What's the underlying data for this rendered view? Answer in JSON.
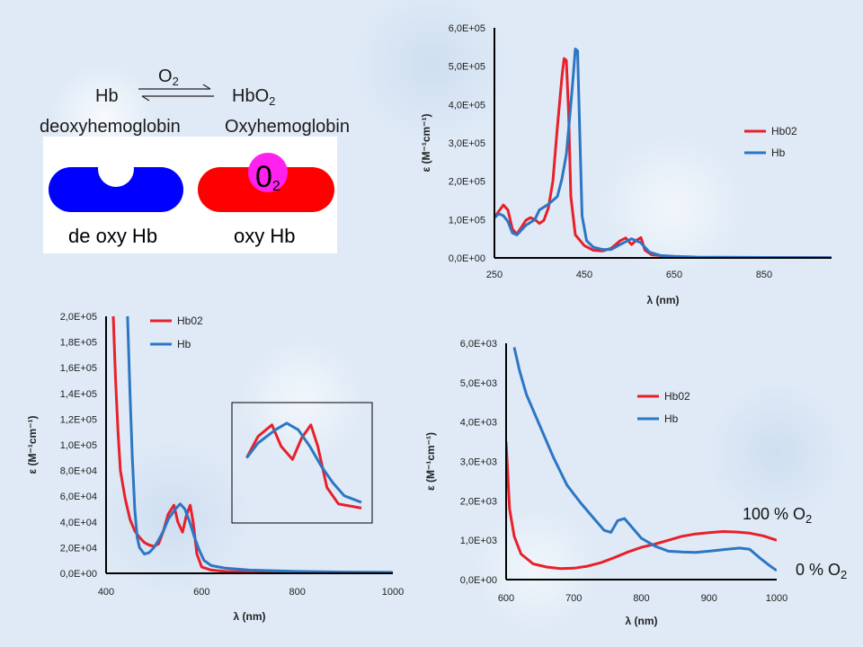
{
  "reaction": {
    "o2_label": "O",
    "o2_sub": "2",
    "reactant": "Hb",
    "product": "HbO",
    "product_sub": "2",
    "reactant_name": "deoxyhemoglobin",
    "product_name": "Oxyhemoglobin"
  },
  "illustration": {
    "deoxy_label": "de oxy Hb",
    "oxy_label": "oxy Hb",
    "o2_glyph": "0",
    "o2_glyph_sub": "2",
    "deoxy_color": "#0000ff",
    "oxy_color": "#ff0000",
    "o2_color": "#ff22ee"
  },
  "annotations": {
    "full_oxy": "100 % O",
    "full_oxy_sub": "2",
    "zero_oxy": "0 % O",
    "zero_oxy_sub": "2"
  },
  "colors": {
    "hbo2": "#e8202a",
    "hb": "#2c76c4",
    "axis": "#000000"
  },
  "chart_data": [
    {
      "type": "line",
      "title": "",
      "xlabel": "λ (nm)",
      "ylabel": "ε (M⁻¹cm⁻¹)",
      "xlim": [
        250,
        1000
      ],
      "ylim": [
        0,
        600000
      ],
      "xticks": [
        250,
        450,
        650,
        850
      ],
      "xtick_labels": [
        "250",
        "450",
        "650",
        "850"
      ],
      "yticks": [
        0,
        100000,
        200000,
        300000,
        400000,
        500000,
        600000
      ],
      "ytick_labels": [
        "0,0E+00",
        "1,0E+05",
        "2,0E+05",
        "3,0E+05",
        "4,0E+05",
        "5,0E+05",
        "6,0E+05"
      ],
      "legend_position": "right",
      "series": [
        {
          "name": "Hb02",
          "color": "#e8202a",
          "points": [
            [
              250,
              105000
            ],
            [
              260,
              122000
            ],
            [
              270,
              138000
            ],
            [
              280,
              125000
            ],
            [
              290,
              75000
            ],
            [
              300,
              62000
            ],
            [
              310,
              80000
            ],
            [
              320,
              98000
            ],
            [
              330,
              105000
            ],
            [
              340,
              100000
            ],
            [
              350,
              90000
            ],
            [
              360,
              98000
            ],
            [
              370,
              130000
            ],
            [
              380,
              200000
            ],
            [
              390,
              340000
            ],
            [
              400,
              470000
            ],
            [
              405,
              520000
            ],
            [
              410,
              515000
            ],
            [
              415,
              380000
            ],
            [
              420,
              160000
            ],
            [
              430,
              60000
            ],
            [
              450,
              32000
            ],
            [
              470,
              20000
            ],
            [
              490,
              18000
            ],
            [
              510,
              25000
            ],
            [
              530,
              45000
            ],
            [
              542,
              52000
            ],
            [
              555,
              35000
            ],
            [
              565,
              45000
            ],
            [
              576,
              53000
            ],
            [
              585,
              20000
            ],
            [
              600,
              8000
            ],
            [
              650,
              3000
            ],
            [
              700,
              1500
            ],
            [
              800,
              1200
            ],
            [
              900,
              1000
            ],
            [
              1000,
              800
            ]
          ]
        },
        {
          "name": "Hb",
          "color": "#2c76c4",
          "points": [
            [
              250,
              105000
            ],
            [
              260,
              115000
            ],
            [
              270,
              110000
            ],
            [
              280,
              95000
            ],
            [
              290,
              65000
            ],
            [
              300,
              60000
            ],
            [
              320,
              85000
            ],
            [
              340,
              100000
            ],
            [
              350,
              125000
            ],
            [
              370,
              140000
            ],
            [
              390,
              160000
            ],
            [
              400,
              205000
            ],
            [
              410,
              270000
            ],
            [
              420,
              400000
            ],
            [
              425,
              470000
            ],
            [
              430,
              545000
            ],
            [
              435,
              540000
            ],
            [
              440,
              320000
            ],
            [
              445,
              110000
            ],
            [
              455,
              45000
            ],
            [
              470,
              28000
            ],
            [
              490,
              22000
            ],
            [
              510,
              22000
            ],
            [
              530,
              35000
            ],
            [
              555,
              50000
            ],
            [
              575,
              40000
            ],
            [
              595,
              15000
            ],
            [
              620,
              6000
            ],
            [
              650,
              4000
            ],
            [
              700,
              2000
            ],
            [
              800,
              1500
            ],
            [
              900,
              1000
            ],
            [
              1000,
              800
            ]
          ]
        }
      ]
    },
    {
      "type": "line",
      "title": "",
      "xlabel": "λ (nm)",
      "ylabel": "ε (M⁻¹cm⁻¹)",
      "xlim": [
        400,
        1000
      ],
      "ylim": [
        0,
        200000
      ],
      "xticks": [
        400,
        600,
        800,
        1000
      ],
      "xtick_labels": [
        "400",
        "600",
        "800",
        "1000"
      ],
      "yticks": [
        0,
        20000,
        40000,
        60000,
        80000,
        100000,
        120000,
        140000,
        160000,
        180000,
        200000
      ],
      "ytick_labels": [
        "0,0E+00",
        "2,0E+04",
        "4,0E+04",
        "6,0E+04",
        "8,0E+04",
        "1,0E+05",
        "1,2E+05",
        "1,4E+05",
        "1,6E+05",
        "1,8E+05",
        "2,0E+05"
      ],
      "legend_position": "top-left",
      "inset": "zoomed view of the 500–600 nm Q bands",
      "series": [
        {
          "name": "Hb02",
          "color": "#e8202a",
          "points": [
            [
              415,
              200000
            ],
            [
              420,
              150000
            ],
            [
              425,
              110000
            ],
            [
              430,
              80000
            ],
            [
              440,
              58000
            ],
            [
              450,
              42000
            ],
            [
              460,
              33000
            ],
            [
              470,
              28000
            ],
            [
              480,
              24000
            ],
            [
              490,
              22000
            ],
            [
              500,
              21000
            ],
            [
              510,
              23000
            ],
            [
              520,
              33000
            ],
            [
              530,
              46000
            ],
            [
              542,
              53000
            ],
            [
              550,
              40000
            ],
            [
              560,
              32000
            ],
            [
              568,
              45000
            ],
            [
              576,
              53000
            ],
            [
              582,
              40000
            ],
            [
              590,
              15000
            ],
            [
              600,
              5000
            ],
            [
              620,
              2500
            ],
            [
              650,
              1500
            ],
            [
              700,
              1000
            ],
            [
              800,
              800
            ],
            [
              900,
              700
            ],
            [
              1000,
              600
            ]
          ]
        },
        {
          "name": "Hb",
          "color": "#2c76c4",
          "points": [
            [
              445,
              200000
            ],
            [
              450,
              140000
            ],
            [
              455,
              90000
            ],
            [
              460,
              50000
            ],
            [
              465,
              28000
            ],
            [
              470,
              20000
            ],
            [
              480,
              15000
            ],
            [
              490,
              16000
            ],
            [
              500,
              20000
            ],
            [
              510,
              26000
            ],
            [
              520,
              33000
            ],
            [
              530,
              42000
            ],
            [
              545,
              50000
            ],
            [
              555,
              54000
            ],
            [
              565,
              50000
            ],
            [
              575,
              40000
            ],
            [
              585,
              28000
            ],
            [
              595,
              18000
            ],
            [
              605,
              10000
            ],
            [
              620,
              6000
            ],
            [
              650,
              4000
            ],
            [
              700,
              2500
            ],
            [
              800,
              1500
            ],
            [
              900,
              1000
            ],
            [
              1000,
              800
            ]
          ]
        }
      ]
    },
    {
      "type": "line",
      "title": "",
      "xlabel": "λ (nm)",
      "ylabel": "ε (M⁻¹cm⁻¹)",
      "xlim": [
        600,
        1000
      ],
      "ylim": [
        0,
        6000
      ],
      "xticks": [
        600,
        700,
        800,
        900,
        1000
      ],
      "xtick_labels": [
        "600",
        "700",
        "800",
        "900",
        "1000"
      ],
      "yticks": [
        0,
        1000,
        2000,
        3000,
        4000,
        5000,
        6000
      ],
      "ytick_labels": [
        "0,0E+00",
        "1,0E+03",
        "2,0E+03",
        "3,0E+03",
        "4,0E+03",
        "5,0E+03",
        "6,0E+03"
      ],
      "legend_position": "top-center",
      "series": [
        {
          "name": "Hb02",
          "color": "#e8202a",
          "points": [
            [
              600,
              3500
            ],
            [
              605,
              1800
            ],
            [
              612,
              1100
            ],
            [
              622,
              650
            ],
            [
              640,
              400
            ],
            [
              660,
              320
            ],
            [
              680,
              280
            ],
            [
              700,
              290
            ],
            [
              720,
              340
            ],
            [
              740,
              430
            ],
            [
              760,
              560
            ],
            [
              780,
              700
            ],
            [
              800,
              820
            ],
            [
              820,
              900
            ],
            [
              840,
              1000
            ],
            [
              860,
              1100
            ],
            [
              880,
              1160
            ],
            [
              900,
              1190
            ],
            [
              920,
              1220
            ],
            [
              940,
              1210
            ],
            [
              960,
              1180
            ],
            [
              980,
              1110
            ],
            [
              1000,
              1000
            ]
          ]
        },
        {
          "name": "Hb",
          "color": "#2c76c4",
          "points": [
            [
              612,
              5900
            ],
            [
              620,
              5300
            ],
            [
              630,
              4700
            ],
            [
              650,
              3900
            ],
            [
              670,
              3100
            ],
            [
              690,
              2400
            ],
            [
              710,
              1950
            ],
            [
              730,
              1550
            ],
            [
              745,
              1250
            ],
            [
              755,
              1200
            ],
            [
              765,
              1500
            ],
            [
              775,
              1550
            ],
            [
              785,
              1350
            ],
            [
              800,
              1050
            ],
            [
              820,
              850
            ],
            [
              840,
              720
            ],
            [
              860,
              700
            ],
            [
              880,
              690
            ],
            [
              900,
              720
            ],
            [
              920,
              760
            ],
            [
              945,
              800
            ],
            [
              960,
              770
            ],
            [
              975,
              550
            ],
            [
              990,
              350
            ],
            [
              1000,
              230
            ]
          ]
        }
      ]
    }
  ]
}
